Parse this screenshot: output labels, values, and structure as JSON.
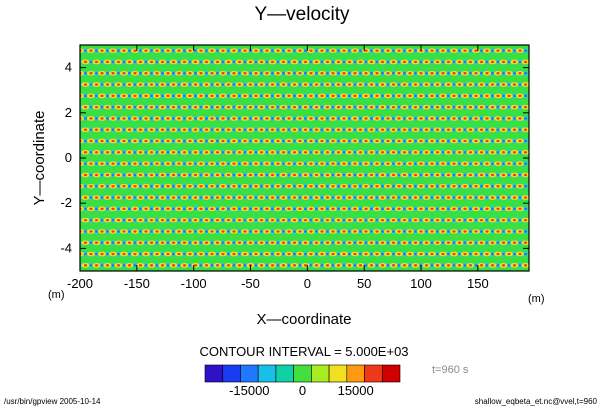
{
  "chart_data": {
    "type": "heatmap",
    "title": "Y—velocity",
    "xlabel": "X—coordinate",
    "ylabel": "Y—coordinate",
    "x_unit": "(m)",
    "y_unit": "(m)",
    "xlim": [
      -200,
      195
    ],
    "ylim": [
      -5,
      5
    ],
    "x_ticks": [
      -200,
      -150,
      -100,
      -50,
      0,
      50,
      100,
      150
    ],
    "y_ticks": [
      -4,
      -2,
      0,
      2,
      4
    ],
    "contour_interval_label": "CONTOUR INTERVAL = 5.000E+03",
    "time_label": "t=960 s",
    "colorbar": {
      "levels": [
        -22500,
        -17500,
        -12500,
        -7500,
        -2500,
        2500,
        7500,
        12500,
        17500,
        22500
      ],
      "tick_values": [
        -15000,
        0,
        15000
      ],
      "tick_labels": [
        "-15000",
        "0",
        "15000"
      ],
      "colors": [
        "#3010c8",
        "#1a3cf0",
        "#1f78ff",
        "#18bfe6",
        "#10d0a6",
        "#40e040",
        "#a6ec20",
        "#f0e020",
        "#ff9a10",
        "#f03818",
        "#d00000"
      ]
    },
    "field_colors": {
      "background": "#38e040",
      "band": "#2fd0c0",
      "cell_positive": "#f0e020",
      "cell_strong": "#f04018",
      "cell_negative": "#1f78ff"
    },
    "grid": false,
    "legend": "none"
  },
  "footer": {
    "left": "/usr/bin/gpview   2005-10-14",
    "right": "shallow_eqbeta_et.nc@vvel,t=960"
  }
}
